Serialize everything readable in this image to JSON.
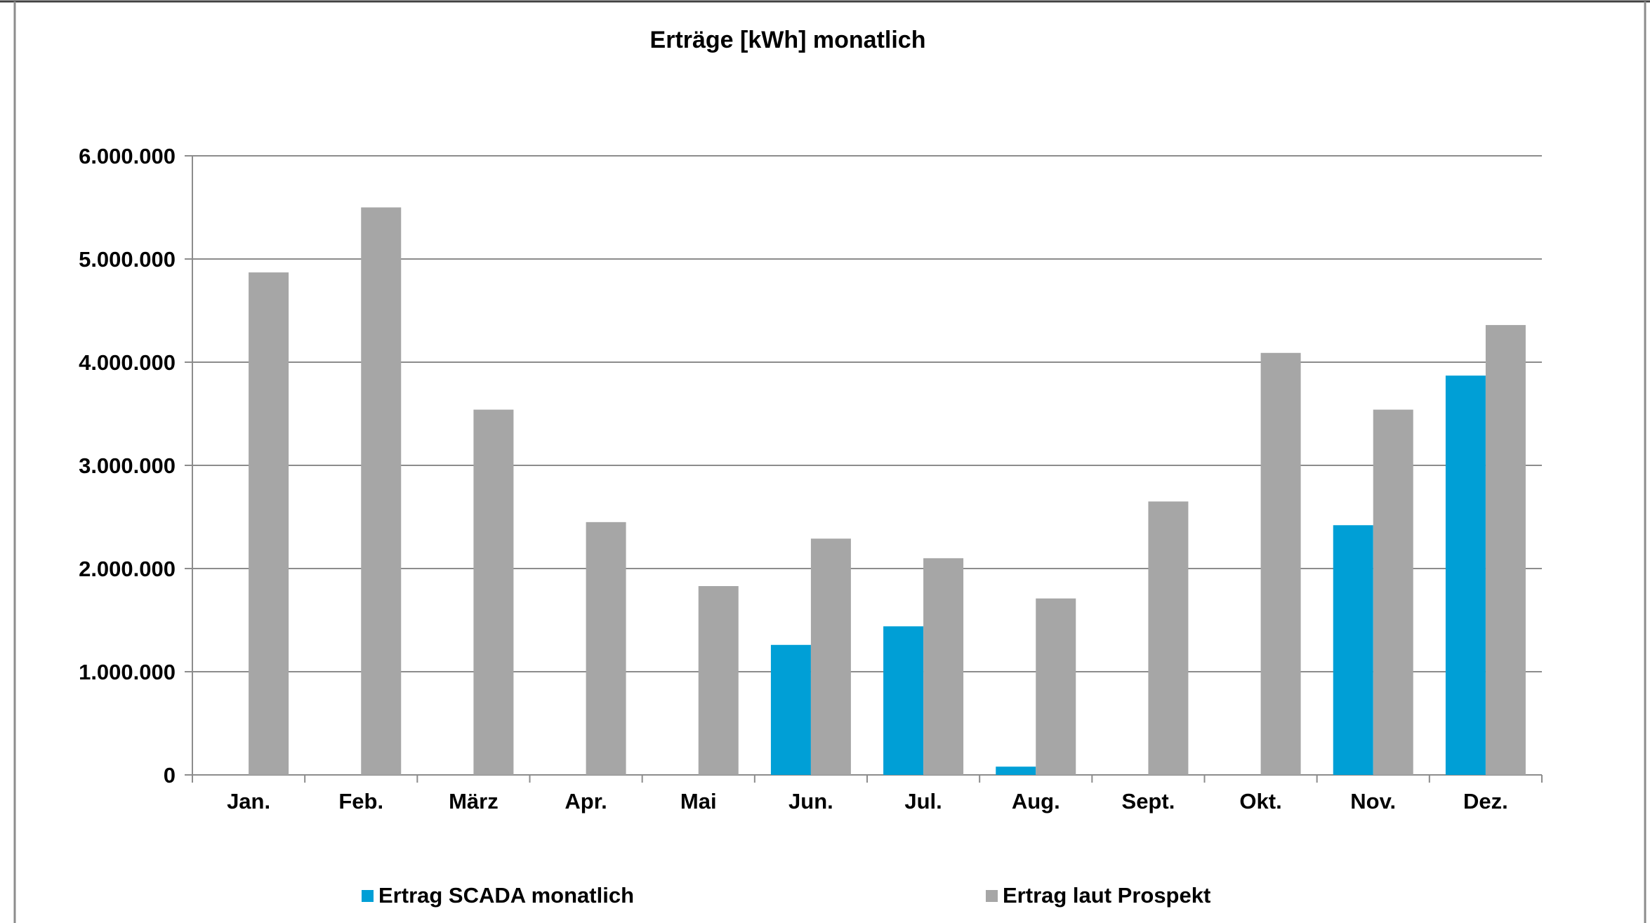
{
  "chart_data": {
    "type": "bar",
    "title": "Erträge [kWh] monatlich",
    "categories": [
      "Jan.",
      "Feb.",
      "März",
      "Apr.",
      "Mai",
      "Jun.",
      "Jul.",
      "Aug.",
      "Sept.",
      "Okt.",
      "Nov.",
      "Dez."
    ],
    "series": [
      {
        "name": "Ertrag SCADA monatlich",
        "color": "#009fd6",
        "values": [
          null,
          null,
          null,
          null,
          null,
          1260000,
          1440000,
          80000,
          null,
          null,
          2420000,
          3870000
        ]
      },
      {
        "name": "Ertrag laut Prospekt",
        "color": "#a6a6a6",
        "values": [
          4870000,
          5500000,
          3540000,
          2450000,
          1830000,
          2290000,
          2100000,
          1710000,
          2650000,
          4090000,
          3540000,
          4360000
        ]
      }
    ],
    "y_ticks": [
      "0",
      "1.000.000",
      "2.000.000",
      "3.000.000",
      "4.000.000",
      "5.000.000",
      "6.000.000"
    ],
    "ylim": [
      0,
      6000000
    ],
    "grid": true,
    "legend_position": "bottom"
  }
}
